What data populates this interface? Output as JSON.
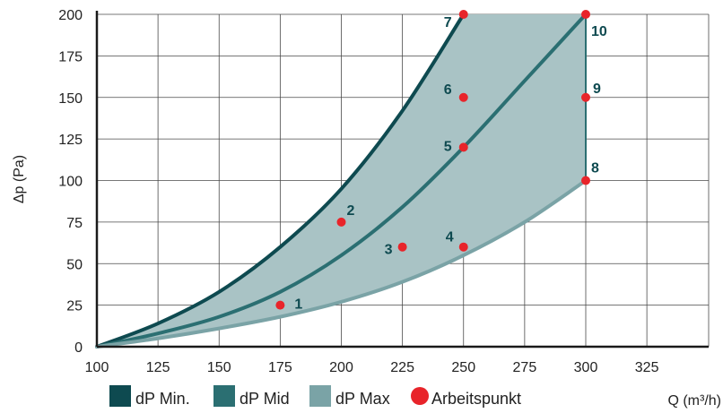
{
  "chart_data": {
    "type": "line",
    "xlabel": "Q (m³/h)",
    "ylabel": "Δp (Pa)",
    "xlim": [
      100,
      350
    ],
    "ylim": [
      0,
      200
    ],
    "x_ticks": [
      "100",
      "125",
      "150",
      "175",
      "200",
      "225",
      "250",
      "275",
      "300",
      "325"
    ],
    "y_ticks": [
      "0",
      "25",
      "50",
      "75",
      "100",
      "125",
      "150",
      "175",
      "200"
    ],
    "grid": true,
    "series": [
      {
        "name": "dP Min.",
        "color": "#0e4a50",
        "x": [
          100,
          125,
          150,
          175,
          200,
          225,
          250
        ],
        "y": [
          0,
          14,
          33,
          60,
          95,
          142,
          200
        ]
      },
      {
        "name": "dP Mid",
        "color": "#2b6f72",
        "x": [
          100,
          125,
          150,
          175,
          200,
          225,
          250,
          275,
          300
        ],
        "y": [
          0,
          8,
          18,
          33,
          55,
          84,
          120,
          160,
          200
        ]
      },
      {
        "name": "dP Max",
        "color": "#7aa3a6",
        "x": [
          100,
          125,
          150,
          175,
          200,
          225,
          250,
          275,
          300
        ],
        "y": [
          0,
          5,
          11,
          18,
          27,
          39,
          55,
          75,
          100
        ]
      }
    ],
    "area_fill": "#a9c3c5",
    "points": {
      "name": "Arbeitspunkt",
      "color": "#e8242a",
      "items": [
        {
          "label": "1",
          "x": 175,
          "y": 25
        },
        {
          "label": "2",
          "x": 200,
          "y": 75
        },
        {
          "label": "3",
          "x": 225,
          "y": 60
        },
        {
          "label": "4",
          "x": 250,
          "y": 60
        },
        {
          "label": "5",
          "x": 250,
          "y": 120
        },
        {
          "label": "6",
          "x": 250,
          "y": 150
        },
        {
          "label": "7",
          "x": 250,
          "y": 200
        },
        {
          "label": "8",
          "x": 300,
          "y": 100
        },
        {
          "label": "9",
          "x": 300,
          "y": 150
        },
        {
          "label": "10",
          "x": 300,
          "y": 200
        }
      ]
    },
    "legend": {
      "placement": "bottom",
      "entries": [
        {
          "label": "dP Min.",
          "color": "#0e4a50"
        },
        {
          "label": "dP Mid",
          "color": "#2b6f72"
        },
        {
          "label": "dP Max",
          "color": "#7aa3a6"
        },
        {
          "label": "Arbeitspunkt",
          "color": "#e8242a"
        }
      ]
    }
  }
}
